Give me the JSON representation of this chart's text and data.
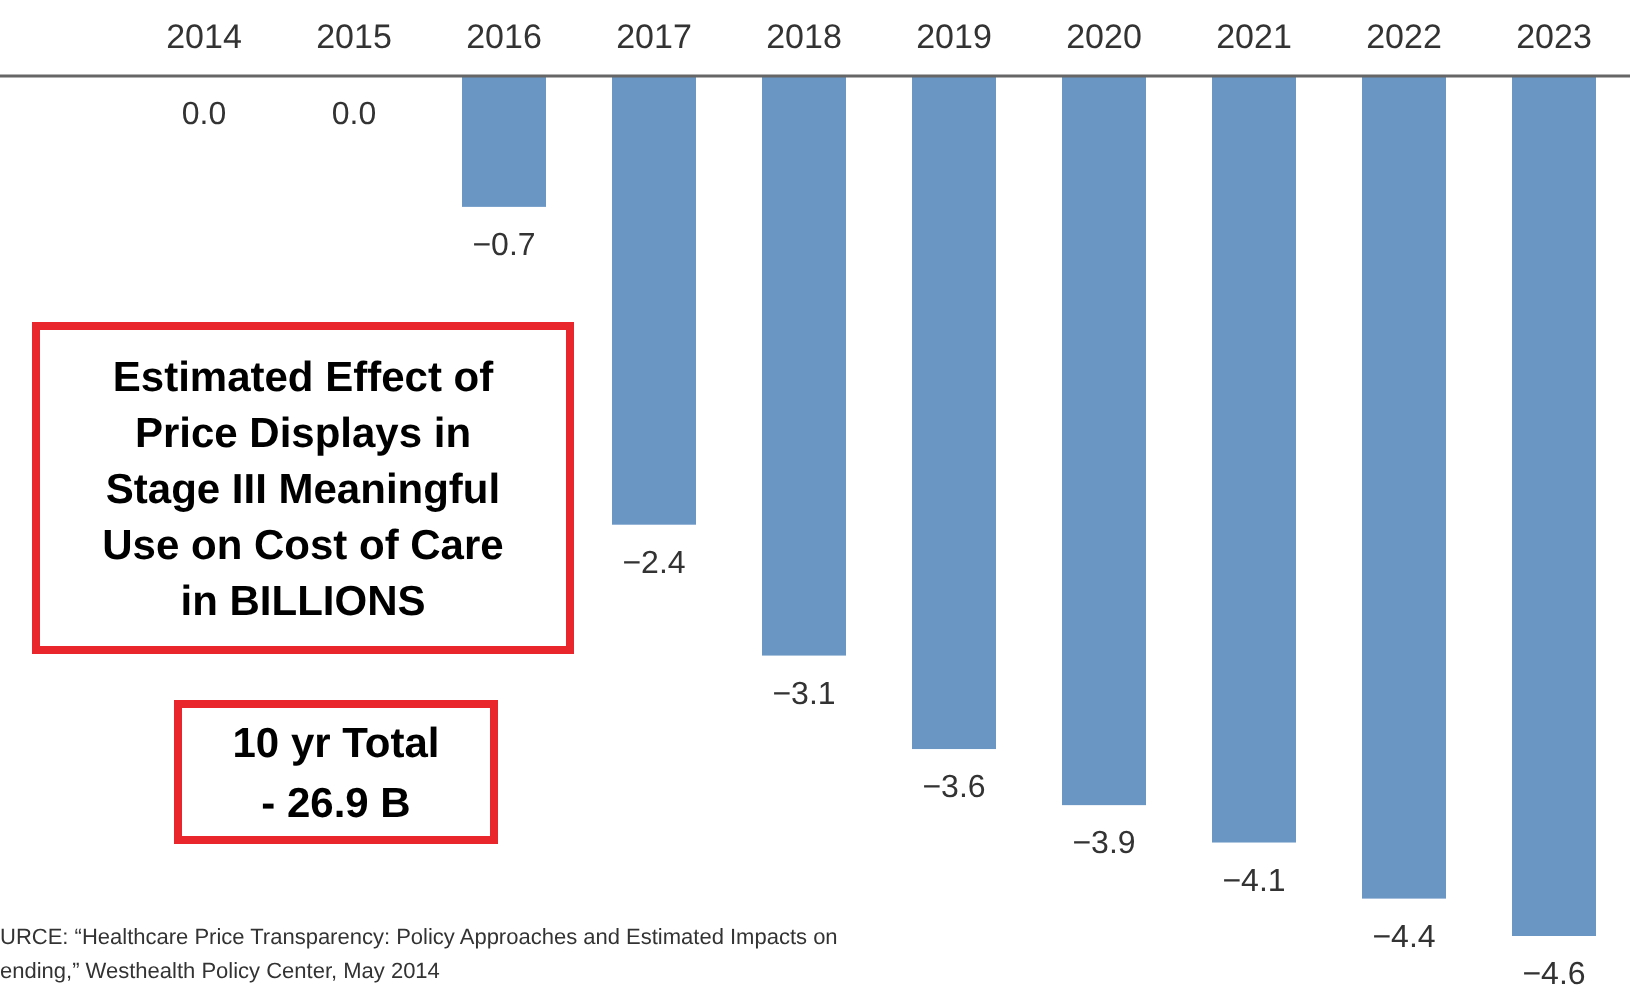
{
  "chart_data": {
    "type": "bar",
    "categories": [
      "2014",
      "2015",
      "2016",
      "2017",
      "2018",
      "2019",
      "2020",
      "2021",
      "2022",
      "2023"
    ],
    "values": [
      0.0,
      0.0,
      -0.7,
      -2.4,
      -3.1,
      -3.6,
      -3.9,
      -4.1,
      -4.4,
      -4.6
    ],
    "value_labels": [
      "0.0",
      "0.0",
      "−0.7",
      "−2.4",
      "−3.1",
      "−3.6",
      "−3.9",
      "−4.1",
      "−4.4",
      "−4.6"
    ],
    "color": "#6a96c4",
    "ylim": [
      -4.6,
      0
    ],
    "tick_labels": "x",
    "grid": false,
    "annotations": [
      "Estimated Effect of\nPrice Displays in\nStage III Meaningful\nUse on Cost of Care\nin BILLIONS",
      "10 yr Total\n- 26.9 B",
      "URCE: “Healthcare Price Transparency: Policy Approaches and Estimated Impacts on\nending,” Westhealth Policy Center, May 2014"
    ]
  }
}
